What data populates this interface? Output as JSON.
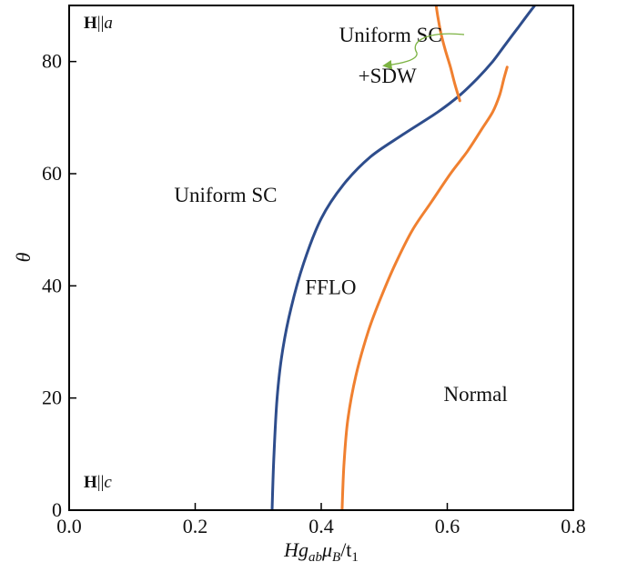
{
  "chart_data": {
    "type": "line",
    "xlabel_parts": {
      "base": "Hg",
      "sub1": "ab",
      "mid": "μ",
      "sub2": "B",
      "slash": "/t",
      "sub3": "1"
    },
    "ylabel": "θ",
    "xlim": [
      0.0,
      0.8
    ],
    "ylim": [
      0,
      90
    ],
    "x_ticks": [
      {
        "value": 0.0,
        "label": "0.0"
      },
      {
        "value": 0.2,
        "label": "0.2"
      },
      {
        "value": 0.4,
        "label": "0.4"
      },
      {
        "value": 0.6,
        "label": "0.6"
      },
      {
        "value": 0.8,
        "label": "0.8"
      }
    ],
    "y_ticks": [
      {
        "value": 0,
        "label": "0"
      },
      {
        "value": 20,
        "label": "20"
      },
      {
        "value": 40,
        "label": "40"
      },
      {
        "value": 60,
        "label": "60"
      },
      {
        "value": 80,
        "label": "80"
      }
    ],
    "grid": false,
    "series": [
      {
        "color": "#2e4d8c",
        "x": [
          0.322,
          0.325,
          0.33,
          0.338,
          0.352,
          0.372,
          0.4,
          0.435,
          0.478,
          0.53,
          0.585,
          0.62,
          0.648,
          0.672,
          0.692,
          0.712,
          0.732,
          0.746
        ],
        "y": [
          0,
          10,
          20,
          28,
          36,
          44,
          52,
          58,
          63,
          67,
          71,
          74,
          77,
          80,
          83,
          86,
          89,
          91
        ]
      },
      {
        "color": "#f08030",
        "x": [
          0.433,
          0.436,
          0.442,
          0.455,
          0.475,
          0.495,
          0.518,
          0.545,
          0.575,
          0.605,
          0.632,
          0.655,
          0.672,
          0.683,
          0.69,
          0.695
        ],
        "y": [
          0,
          8,
          16,
          24,
          32,
          38,
          44,
          50,
          55,
          60,
          64,
          68,
          71,
          74,
          77,
          79
        ]
      },
      {
        "color": "#f08030",
        "x": [
          0.581,
          0.585,
          0.59,
          0.597,
          0.605,
          0.612,
          0.62
        ],
        "y": [
          91,
          88,
          85,
          82,
          79,
          76,
          73
        ]
      }
    ],
    "annotations": [
      {
        "key": "a1",
        "text": "Uniform SC",
        "x": 0.33,
        "y": 55
      },
      {
        "key": "a2",
        "text": "FFLO",
        "x": 0.415,
        "y": 38.5
      },
      {
        "key": "a3",
        "text": "Normal",
        "x": 0.645,
        "y": 19.5
      },
      {
        "key": "a4",
        "text": "Uniform SC",
        "x": 0.51,
        "y": 83.5
      },
      {
        "key": "a5",
        "text": "+SDW",
        "x": 0.505,
        "y": 76.2
      }
    ],
    "corner_labels": {
      "top": {
        "bold": "H",
        "rest": "||",
        "italic": "a"
      },
      "bottom": {
        "bold": "H",
        "rest": "||",
        "italic": "c"
      }
    },
    "arrow_color": "#7cb342"
  }
}
